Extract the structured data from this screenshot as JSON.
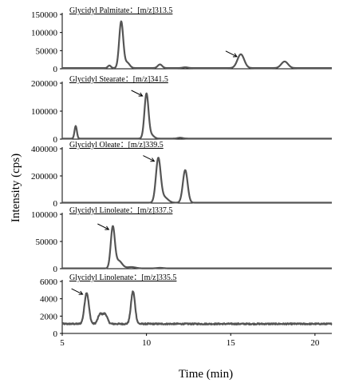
{
  "chart_data": {
    "type": "line",
    "xlabel": "Time (min)",
    "ylabel": "Intensity (cps)",
    "xlim": [
      5,
      21
    ],
    "xticks": [
      5,
      10,
      15,
      20
    ],
    "panels": [
      {
        "title": "Glycidyl Palmitate：[m/z]313.5",
        "ylim": [
          0,
          150000
        ],
        "yticks": [
          0,
          50000,
          100000,
          150000
        ],
        "baseline": 2000,
        "noise": 0,
        "peaks": [
          {
            "x": 7.8,
            "y": 7000,
            "w": 0.09
          },
          {
            "x": 8.5,
            "y": 128000,
            "w": 0.12
          },
          {
            "x": 8.85,
            "y": 15000,
            "w": 0.15
          },
          {
            "x": 10.8,
            "y": 10000,
            "w": 0.13
          },
          {
            "x": 12.3,
            "y": 2000,
            "w": 0.15
          },
          {
            "x": 15.6,
            "y": 38000,
            "w": 0.2
          },
          {
            "x": 18.2,
            "y": 18000,
            "w": 0.2
          }
        ],
        "arrow_at": {
          "x": 15.6,
          "y": 38000
        }
      },
      {
        "title": "Glycidyl Stearate：[m/z]341.5",
        "ylim": [
          0,
          200000
        ],
        "yticks": [
          0,
          100000,
          200000
        ],
        "baseline": 2000,
        "noise": 0,
        "peaks": [
          {
            "x": 5.8,
            "y": 45000,
            "w": 0.07
          },
          {
            "x": 10.0,
            "y": 160000,
            "w": 0.12
          },
          {
            "x": 10.3,
            "y": 12000,
            "w": 0.15
          },
          {
            "x": 12.0,
            "y": 3000,
            "w": 0.15
          }
        ],
        "arrow_at": {
          "x": 10.0,
          "y": 160000
        }
      },
      {
        "title": "Glycidyl Oleate：[m/z]339.5",
        "ylim": [
          0,
          400000
        ],
        "yticks": [
          0,
          200000,
          400000
        ],
        "baseline": 3000,
        "noise": 0,
        "peaks": [
          {
            "x": 10.7,
            "y": 320000,
            "w": 0.14
          },
          {
            "x": 11.05,
            "y": 40000,
            "w": 0.22
          },
          {
            "x": 12.3,
            "y": 240000,
            "w": 0.14
          }
        ],
        "arrow_at": {
          "x": 10.7,
          "y": 320000
        }
      },
      {
        "title": "Glycidyl Linoleate：[m/z]337.5",
        "ylim": [
          0,
          100000
        ],
        "yticks": [
          0,
          50000,
          100000
        ],
        "baseline": 500,
        "noise": 0,
        "peaks": [
          {
            "x": 8.0,
            "y": 75000,
            "w": 0.12
          },
          {
            "x": 8.35,
            "y": 14000,
            "w": 0.2
          },
          {
            "x": 9.1,
            "y": 2500,
            "w": 0.25
          },
          {
            "x": 10.8,
            "y": 1000,
            "w": 0.2
          }
        ],
        "arrow_at": {
          "x": 8.0,
          "y": 75000
        }
      },
      {
        "title": "Glycidyl Linolenate：[m/z]335.5",
        "ylim": [
          0,
          6000
        ],
        "yticks": [
          0,
          2000,
          4000,
          6000
        ],
        "baseline": 1100,
        "noise": 80,
        "peaks": [
          {
            "x": 6.45,
            "y": 3600,
            "w": 0.13
          },
          {
            "x": 7.25,
            "y": 1100,
            "w": 0.13
          },
          {
            "x": 7.55,
            "y": 1100,
            "w": 0.13
          },
          {
            "x": 9.2,
            "y": 3750,
            "w": 0.12
          }
        ],
        "arrow_at": {
          "x": 6.45,
          "y": 4700
        }
      }
    ]
  }
}
